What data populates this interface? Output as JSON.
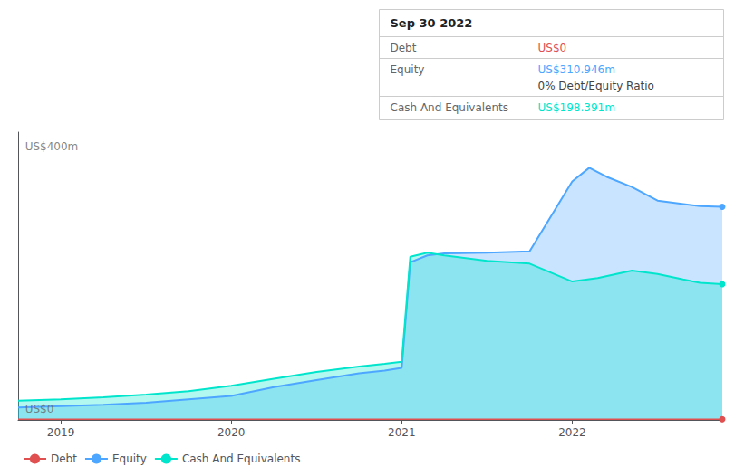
{
  "chart_data": {
    "type": "area",
    "xlim": [
      2018.75,
      2022.88
    ],
    "xticks": [
      2019,
      2020,
      2021,
      2022
    ],
    "ylim": [
      0,
      420
    ],
    "tick_labels": "x",
    "grid": false,
    "legend": "lower left",
    "series": [
      {
        "name": "Debt",
        "type": "line",
        "color": "#e05050",
        "x": [
          2018.75,
          2019.0,
          2019.5,
          2020.0,
          2020.5,
          2021.0,
          2021.5,
          2022.0,
          2022.5,
          2022.88
        ],
        "values": [
          1,
          1,
          1,
          1,
          1,
          1,
          1,
          1,
          1,
          1
        ]
      },
      {
        "name": "Equity",
        "type": "area",
        "color": "#4da6ff",
        "x": [
          2018.75,
          2019.0,
          2019.25,
          2019.5,
          2019.75,
          2020.0,
          2020.25,
          2020.5,
          2020.75,
          2020.9,
          2021.0,
          2021.05,
          2021.15,
          2021.25,
          2021.5,
          2021.75,
          2022.0,
          2022.1,
          2022.2,
          2022.35,
          2022.5,
          2022.75,
          2022.88
        ],
        "values": [
          18,
          20,
          22,
          25,
          30,
          35,
          48,
          58,
          68,
          72,
          76,
          230,
          240,
          243,
          244,
          246,
          348,
          368,
          355,
          340,
          320,
          312,
          311
        ]
      },
      {
        "name": "Cash And Equivalents",
        "type": "area",
        "color": "#00e5cc",
        "x": [
          2018.75,
          2019.0,
          2019.25,
          2019.5,
          2019.75,
          2020.0,
          2020.25,
          2020.5,
          2020.75,
          2020.9,
          2021.0,
          2021.05,
          2021.15,
          2021.25,
          2021.5,
          2021.75,
          2022.0,
          2022.15,
          2022.35,
          2022.5,
          2022.65,
          2022.75,
          2022.88
        ],
        "values": [
          28,
          30,
          33,
          37,
          42,
          50,
          60,
          70,
          78,
          82,
          85,
          238,
          244,
          240,
          232,
          228,
          202,
          207,
          218,
          213,
          205,
          200,
          198
        ]
      }
    ],
    "annotations": [
      {
        "text": "US$400m",
        "x": 2018.78,
        "y": 407
      },
      {
        "text": "US$0",
        "x": 2018.78,
        "y": 8
      }
    ],
    "info_box": {
      "title": "Sep 30 2022",
      "rows": [
        {
          "label": "Debt",
          "value": "US$0",
          "color": "#e05050"
        },
        {
          "label": "Equity",
          "value": "US$310.946m",
          "color": "#4da6ff",
          "note": "0% Debt/Equity Ratio"
        },
        {
          "label": "Cash And Equivalents",
          "value": "US$198.391m",
          "color": "#00e5cc"
        }
      ]
    }
  }
}
